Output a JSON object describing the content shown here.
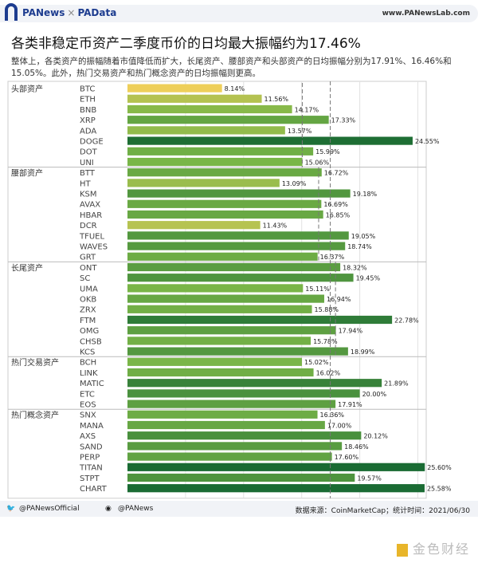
{
  "header": {
    "brand1": "PANews",
    "sep": "×",
    "brand2": "PAData",
    "site": "www.PANewsLab.com"
  },
  "title": "各类非稳定币资产二季度币价的日均最大振幅约为17.46%",
  "subtitle": "整体上，各类资产的振幅随着市值降低而扩大，长尾资产、腰部资产和头部资产的日均振幅分别为17.91%、16.46%和15.05%。此外，热门交易资产和热门概念资产的日均振幅则更高。",
  "footer": {
    "twitter": "@PANewsOfficial",
    "weibo": "@PANews",
    "source": "数据来源：CoinMarketCap；统计时间：2021/06/30",
    "watermark": "金色财经"
  },
  "colors": {
    "low": "#f0cf5a",
    "mid": "#7ab648",
    "high": "#1a6b33"
  },
  "chart_data": {
    "type": "bar",
    "orientation": "horizontal",
    "xlim": [
      0,
      26
    ],
    "grid": true,
    "reference_lines": [
      {
        "group": "头部资产",
        "value": 15.05
      },
      {
        "group": "腰部资产",
        "value": 16.46
      },
      {
        "group": "长尾资产",
        "value": 17.91
      },
      {
        "group": "all",
        "value": 17.46
      }
    ],
    "groups": [
      {
        "name": "头部资产",
        "items": [
          [
            "BTC",
            8.14
          ],
          [
            "ETH",
            11.56
          ],
          [
            "BNB",
            14.17
          ],
          [
            "XRP",
            17.33
          ],
          [
            "ADA",
            13.57
          ],
          [
            "DOGE",
            24.55
          ],
          [
            "DOT",
            15.99
          ],
          [
            "UNI",
            15.06
          ]
        ]
      },
      {
        "name": "腰部资产",
        "items": [
          [
            "BTT",
            16.72
          ],
          [
            "HT",
            13.09
          ],
          [
            "KSM",
            19.18
          ],
          [
            "AVAX",
            16.69
          ],
          [
            "HBAR",
            16.85
          ],
          [
            "DCR",
            11.43
          ],
          [
            "TFUEL",
            19.05
          ],
          [
            "WAVES",
            18.74
          ],
          [
            "GRT",
            16.37
          ]
        ]
      },
      {
        "name": "长尾资产",
        "items": [
          [
            "ONT",
            18.32
          ],
          [
            "SC",
            19.45
          ],
          [
            "UMA",
            15.11
          ],
          [
            "OKB",
            16.94
          ],
          [
            "ZRX",
            15.88
          ],
          [
            "FTM",
            22.78
          ],
          [
            "OMG",
            17.94
          ],
          [
            "CHSB",
            15.78
          ],
          [
            "KCS",
            18.99
          ]
        ]
      },
      {
        "name": "热门交易资产",
        "items": [
          [
            "BCH",
            15.02
          ],
          [
            "LINK",
            16.02
          ],
          [
            "MATIC",
            21.89
          ],
          [
            "ETC",
            20.0
          ],
          [
            "EOS",
            17.91
          ]
        ]
      },
      {
        "name": "热门概念资产",
        "items": [
          [
            "SNX",
            16.36
          ],
          [
            "MANA",
            17.0
          ],
          [
            "AXS",
            20.12
          ],
          [
            "SAND",
            18.46
          ],
          [
            "PERP",
            17.6
          ],
          [
            "TITAN",
            25.6
          ],
          [
            "STPT",
            19.57
          ],
          [
            "CHART",
            25.58
          ]
        ]
      }
    ]
  }
}
